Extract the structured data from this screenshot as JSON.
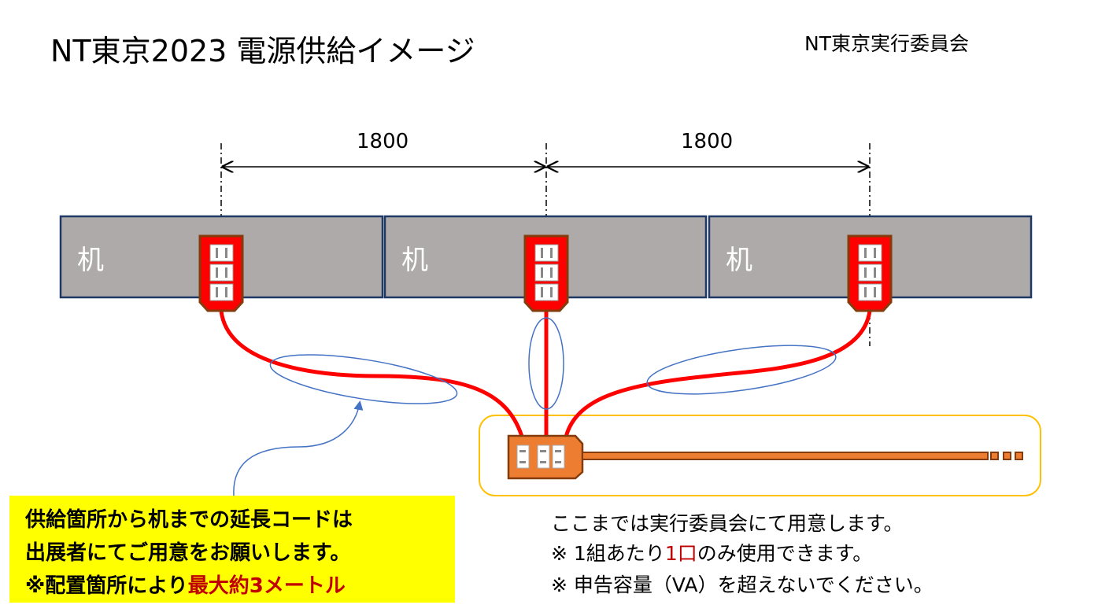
{
  "title": "NT東京2023 電源供給イメージ",
  "organizer": "NT東京実行委員会",
  "dimensions": [
    "1800",
    "1800"
  ],
  "desks": [
    {
      "label": "机"
    },
    {
      "label": "机"
    },
    {
      "label": "机"
    }
  ],
  "note": {
    "line1": "供給箇所から机までの延長コードは",
    "line2": "出展者にてご用意をお願いします。",
    "line3_prefix": "※配置箇所により",
    "line3_highlight": "最大約3メートル"
  },
  "info": {
    "line1": "ここまでは実行委員会にて用意します。",
    "line2_prefix": "※ 1組あたり",
    "line2_highlight": "1口",
    "line2_suffix": "のみ使用できます。",
    "line3": "※ 申告容量（VA）を超えないでください。"
  },
  "colors": {
    "desk": "#AEAAAA",
    "desk_border": "#1F3864",
    "cable": "#FF0000",
    "outlet": "#FF0000",
    "power_strip": "#ED7D31",
    "highlight_box": "#FFC000",
    "callout": "#4472C4",
    "note_bg": "#FFFF00",
    "emphasis": "#C00000"
  }
}
